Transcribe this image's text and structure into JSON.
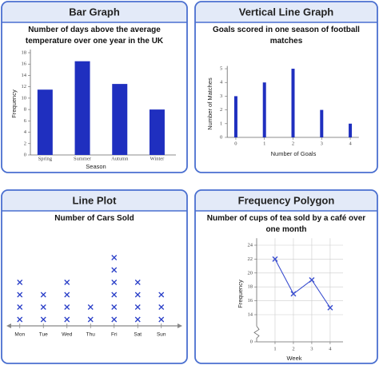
{
  "chart_data": [
    {
      "type": "bar",
      "title": "Bar Graph",
      "subtitle": "Number of days above the average temperature over one year in the UK",
      "categories": [
        "Spring",
        "Summer",
        "Autumn",
        "Winter"
      ],
      "values": [
        11.5,
        16.5,
        12.5,
        8
      ],
      "color": "#1f2fbf",
      "ylim": [
        0,
        18
      ],
      "yticks": [
        0,
        2,
        4,
        6,
        8,
        10,
        12,
        14,
        16,
        18
      ],
      "xlabel": "Season",
      "ylabel": "Frequency"
    },
    {
      "type": "vline",
      "title": "Vertical Line Graph",
      "subtitle": "Goals scored in one season of football matches",
      "x": [
        0,
        1,
        2,
        3,
        4
      ],
      "values": [
        3,
        4,
        5,
        2,
        1
      ],
      "color": "#1f2fbf",
      "xlim": [
        -0.3,
        4.3
      ],
      "xticks": [
        0,
        1,
        2,
        3,
        4
      ],
      "ylim": [
        0,
        5.2
      ],
      "yticks": [
        0,
        1,
        2,
        3,
        4,
        5
      ],
      "xlabel": "Number of Goals",
      "ylabel": "Number of Matches"
    },
    {
      "type": "dotplot",
      "title": "Line Plot",
      "subtitle": "Number of Cars Sold",
      "categories": [
        "Mon",
        "Tue",
        "Wed",
        "Thu",
        "Fri",
        "Sat",
        "Sun"
      ],
      "values": [
        4,
        3,
        4,
        2,
        6,
        4,
        3
      ],
      "color": "#2a3fc8"
    },
    {
      "type": "polygon",
      "title": "Frequency Polygon",
      "subtitle": "Number of cups of tea sold by a café over one month",
      "x": [
        1,
        2,
        3,
        4
      ],
      "values": [
        22,
        17,
        19,
        15
      ],
      "color": "#3b4fd0",
      "xlim": [
        0,
        4.7
      ],
      "xticks": [
        1,
        2,
        3,
        4
      ],
      "ylim": [
        12,
        25
      ],
      "yticks": [
        0,
        14,
        16,
        18,
        20,
        22,
        24
      ],
      "axis_break": true,
      "grid": true,
      "xlabel": "Week",
      "ylabel": "Frequency"
    }
  ]
}
